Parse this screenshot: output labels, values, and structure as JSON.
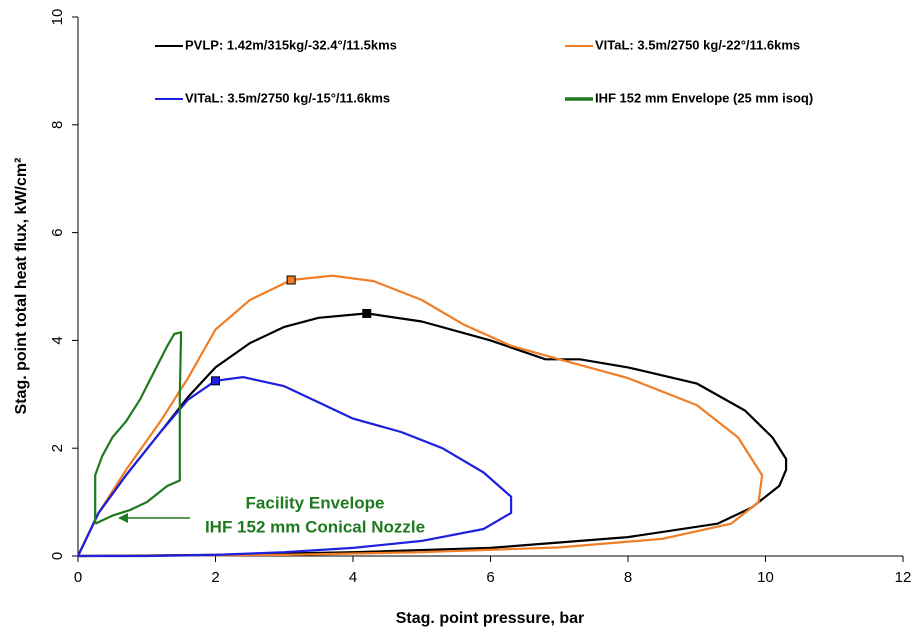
{
  "chart_data": {
    "type": "line",
    "x_label": "Stag. point pressure, bar",
    "y_label": "Stag. point total heat flux, kW/cm²",
    "xlim": [
      0,
      12
    ],
    "xticks": [
      0,
      2,
      4,
      6,
      8,
      10,
      12
    ],
    "ylim": [
      0,
      10
    ],
    "yticks": [
      0,
      2,
      4,
      6,
      8,
      10
    ],
    "annotation": [
      "Facility Envelope",
      "IHF 152 mm Conical Nozzle"
    ],
    "annotation_color": "#1e7a1e",
    "series": [
      {
        "name": "PVLP: 1.42m/315kg/-32.4°/11.5kms",
        "color": "#000000",
        "x": [
          0,
          0.3,
          0.7,
          1.2,
          1.6,
          2,
          2.5,
          3,
          3.5,
          4.2,
          5,
          6,
          6.8,
          7.3,
          8,
          9,
          9.7,
          10.1,
          10.3,
          10.3,
          10.2,
          9.8,
          9.3,
          8,
          6,
          4,
          2,
          0
        ],
        "values": [
          0,
          0.8,
          1.5,
          2.3,
          2.95,
          3.5,
          3.95,
          4.25,
          4.42,
          4.5,
          4.35,
          4.0,
          3.65,
          3.65,
          3.5,
          3.2,
          2.7,
          2.2,
          1.8,
          1.6,
          1.3,
          0.9,
          0.6,
          0.35,
          0.15,
          0.07,
          0.02,
          0
        ],
        "marker_x": 4.2,
        "marker_value": 4.5
      },
      {
        "name": "VITaL: 3.5m/2750 kg/-22°/11.6kms",
        "color": "#f07e26",
        "x": [
          0,
          0.3,
          0.7,
          1.2,
          1.6,
          2,
          2.5,
          3.1,
          3.7,
          4.3,
          5,
          5.6,
          6.3,
          7,
          8,
          9,
          9.6,
          9.95,
          9.9,
          9.5,
          8.5,
          7,
          5,
          3,
          0
        ],
        "values": [
          0,
          0.8,
          1.6,
          2.5,
          3.3,
          4.2,
          4.75,
          5.12,
          5.2,
          5.1,
          4.75,
          4.3,
          3.9,
          3.65,
          3.3,
          2.8,
          2.2,
          1.5,
          1.0,
          0.6,
          0.32,
          0.16,
          0.07,
          0.02,
          0
        ],
        "marker_x": 3.1,
        "marker_value": 5.12
      },
      {
        "name": "VITaL: 3.5m/2750 kg/-15°/11.6kms",
        "color": "#1f1fe0",
        "x": [
          0,
          0.3,
          0.7,
          1.2,
          1.6,
          2,
          2.4,
          3,
          3.5,
          4,
          4.7,
          5.3,
          5.9,
          6.3,
          6.3,
          5.9,
          5,
          4,
          3,
          2,
          1,
          0
        ],
        "values": [
          0,
          0.8,
          1.5,
          2.3,
          2.9,
          3.25,
          3.32,
          3.15,
          2.85,
          2.55,
          2.3,
          2.0,
          1.55,
          1.1,
          0.8,
          0.5,
          0.28,
          0.15,
          0.07,
          0.02,
          0,
          0
        ],
        "marker_x": 2,
        "marker_value": 3.25
      },
      {
        "name": "IHF 152 mm Envelope (25 mm isoq)",
        "color": "#1e7a1e",
        "x": [
          0.25,
          0.25,
          0.35,
          0.5,
          0.7,
          0.9,
          1.1,
          1.3,
          1.4,
          1.5,
          1.48,
          1.48,
          1.3,
          1.15,
          1.0,
          0.75,
          0.5,
          0.25
        ],
        "values": [
          0.6,
          1.5,
          1.85,
          2.2,
          2.5,
          2.9,
          3.4,
          3.9,
          4.12,
          4.15,
          3.0,
          1.4,
          1.3,
          1.15,
          1.0,
          0.85,
          0.75,
          0.6
        ]
      }
    ]
  }
}
